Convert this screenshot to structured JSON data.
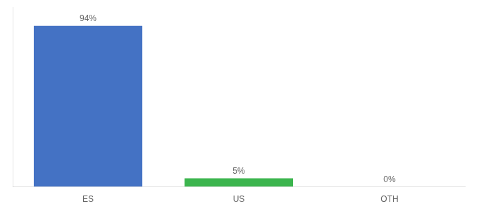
{
  "chart_data": {
    "type": "bar",
    "categories": [
      "ES",
      "US",
      "OTH"
    ],
    "values": [
      94,
      5,
      0
    ],
    "value_labels": [
      "94%",
      "5%",
      "0%"
    ],
    "colors": [
      "#4472c4",
      "#3cb54e",
      "#4472c4"
    ],
    "ylim": [
      0,
      105
    ],
    "grid": false,
    "data_labels": true,
    "tick_labels": "x"
  }
}
